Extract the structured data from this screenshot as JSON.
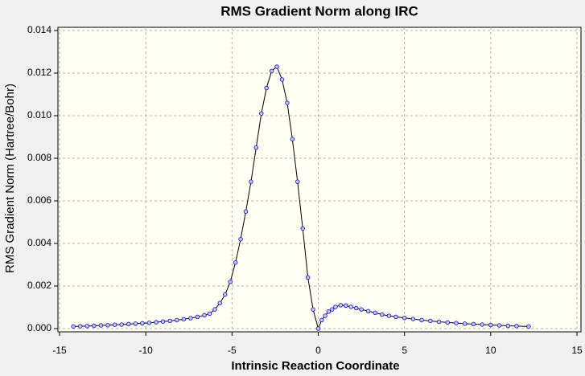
{
  "chart_data": {
    "type": "line",
    "title": "RMS Gradient Norm along IRC",
    "x_label": "Intrinsic Reaction Coordinate",
    "y_label": "RMS Gradient Norm (Hartree/Bohr)",
    "x": [
      -14.2,
      -13.8,
      -13.4,
      -13.0,
      -12.6,
      -12.2,
      -11.8,
      -11.4,
      -11.0,
      -10.6,
      -10.2,
      -9.8,
      -9.4,
      -9.0,
      -8.6,
      -8.2,
      -7.8,
      -7.4,
      -7.0,
      -6.6,
      -6.3,
      -6.0,
      -5.7,
      -5.4,
      -5.1,
      -4.8,
      -4.5,
      -4.2,
      -3.9,
      -3.6,
      -3.3,
      -3.0,
      -2.7,
      -2.4,
      -2.1,
      -1.8,
      -1.5,
      -1.2,
      -0.9,
      -0.6,
      -0.3,
      0,
      0.2,
      0.4,
      0.6,
      0.8,
      1.0,
      1.3,
      1.6,
      1.9,
      2.2,
      2.5,
      2.9,
      3.3,
      3.7,
      4.1,
      4.5,
      5.0,
      5.5,
      6.0,
      6.5,
      7.0,
      7.5,
      8.0,
      8.5,
      9.0,
      9.5,
      10.0,
      10.5,
      11.0,
      11.5,
      12.2
    ],
    "values": [
      0.0001,
      0.00011,
      0.00012,
      0.00013,
      0.00015,
      0.00016,
      0.00018,
      0.00019,
      0.00021,
      0.00023,
      0.00025,
      0.00027,
      0.0003,
      0.00033,
      0.00036,
      0.0004,
      0.00044,
      0.00049,
      0.00055,
      0.00063,
      0.0007,
      0.0009,
      0.0012,
      0.0016,
      0.0022,
      0.0031,
      0.0042,
      0.0055,
      0.0069,
      0.0085,
      0.0101,
      0.0113,
      0.0121,
      0.0123,
      0.0117,
      0.0106,
      0.0089,
      0.0069,
      0.0047,
      0.0024,
      0.0009,
      0,
      0.0004,
      0.0006,
      0.0008,
      0.0009,
      0.00102,
      0.0011,
      0.00108,
      0.00102,
      0.00096,
      0.0009,
      0.00082,
      0.00074,
      0.00066,
      0.0006,
      0.00055,
      0.0005,
      0.00045,
      0.0004,
      0.00036,
      0.00032,
      0.00029,
      0.00026,
      0.00023,
      0.00021,
      0.00019,
      0.00017,
      0.00015,
      0.00013,
      0.00012,
      0.0001
    ],
    "color": "#000000",
    "marker_color": "#2020c0",
    "xlim": [
      -15,
      15
    ],
    "xticks": [
      -15,
      -10,
      -5,
      0,
      5,
      10,
      15
    ],
    "ylim": [
      0,
      0.014
    ],
    "yticks": [
      {
        "value": 0,
        "label": "0.000"
      },
      {
        "value": 0.002,
        "label": "0.002"
      },
      {
        "value": 0.004,
        "label": "0.004"
      },
      {
        "value": 0.006,
        "label": "0.006"
      },
      {
        "value": 0.008,
        "label": "0.008"
      },
      {
        "value": 0.01,
        "label": "0.010"
      },
      {
        "value": 0.012,
        "label": "0.012"
      },
      {
        "value": 0.014,
        "label": "0.014"
      }
    ],
    "grid": true
  }
}
